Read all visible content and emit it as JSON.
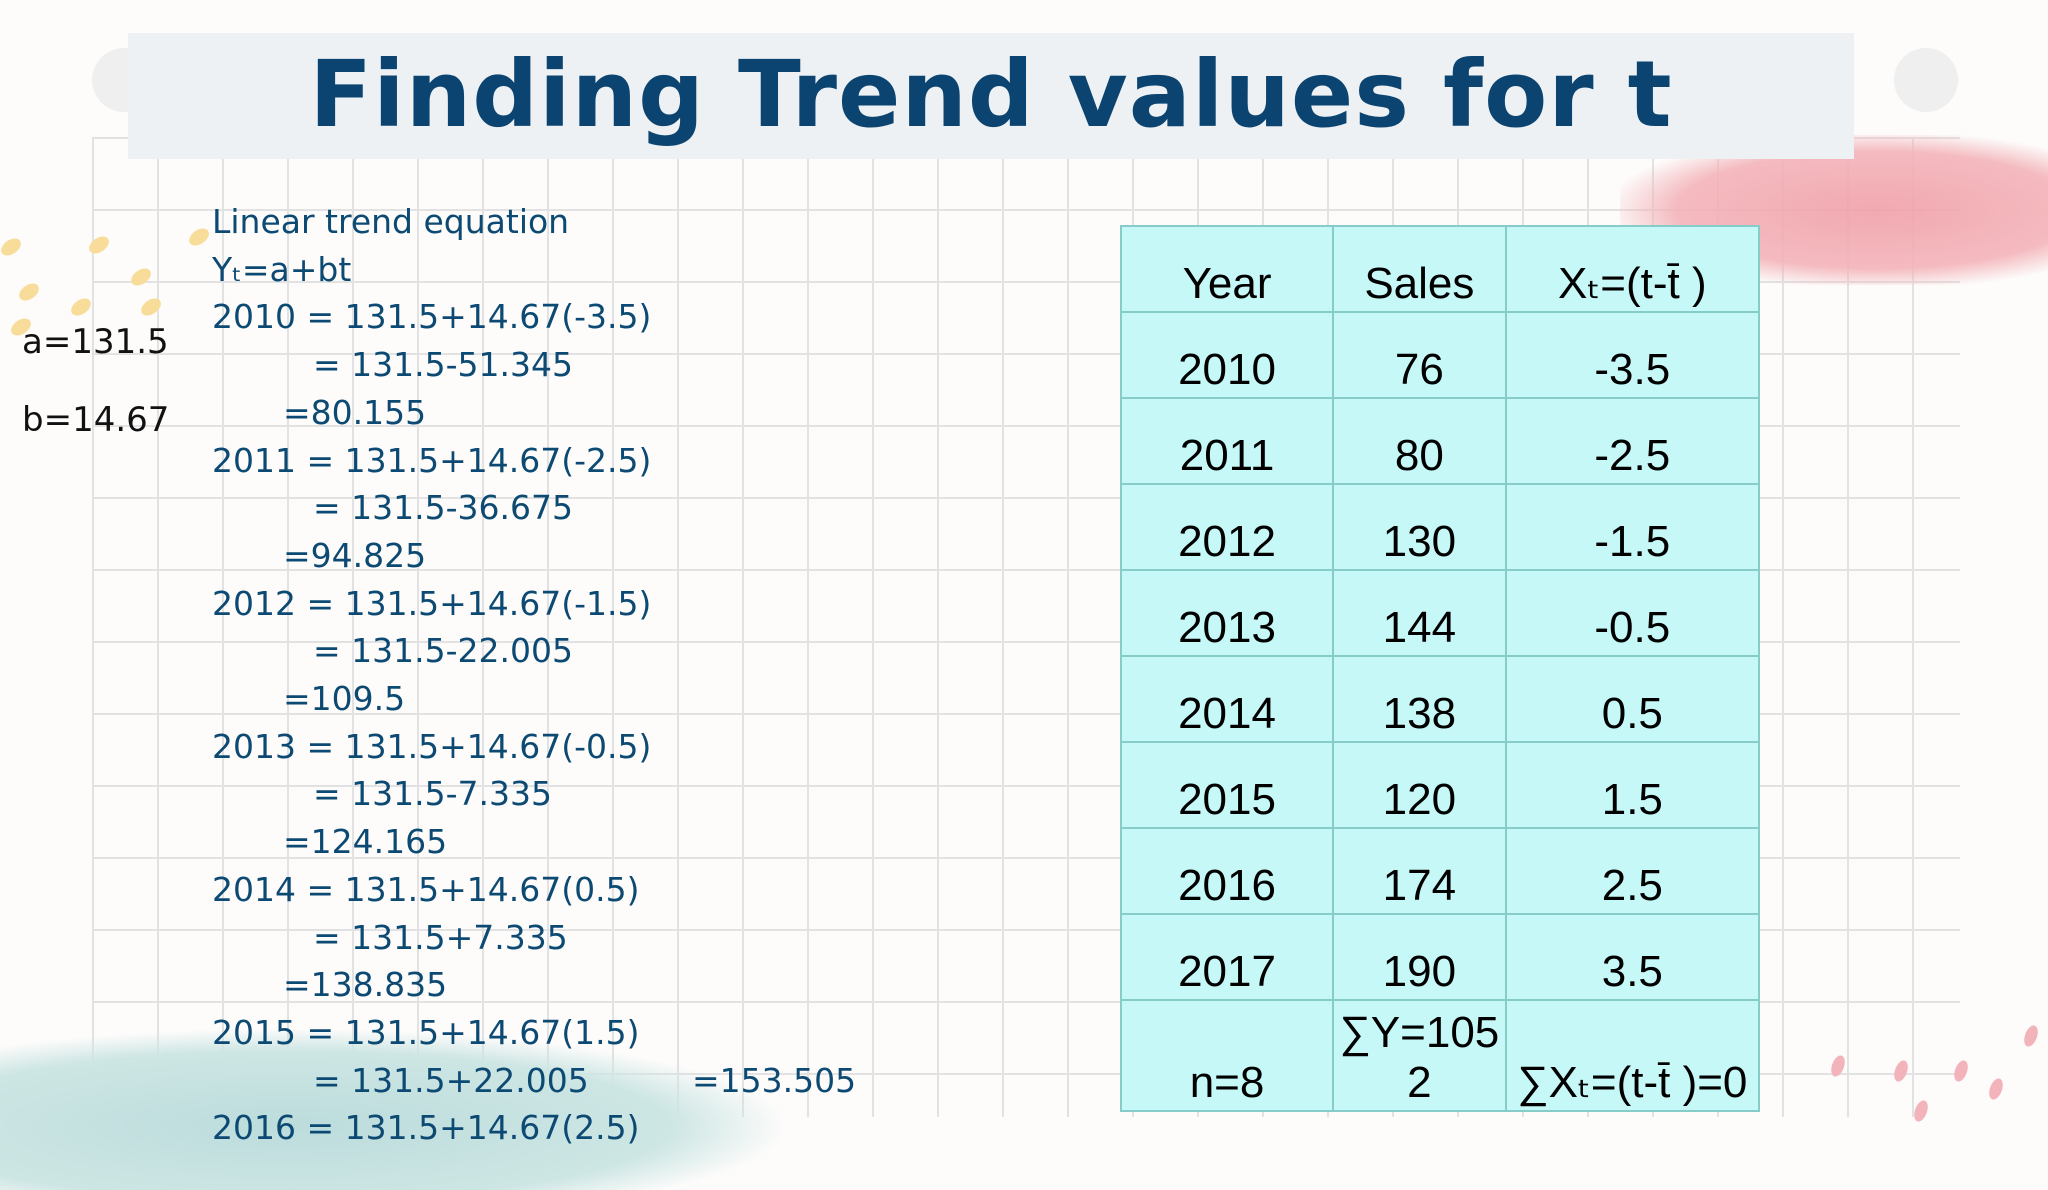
{
  "slide": {
    "title": "Finding Trend values for t",
    "constants": {
      "a": "a=131.5",
      "b": "b=14.67"
    },
    "equations": [
      {
        "text": "Linear trend equation",
        "indent": 0
      },
      {
        "text": "Yₜ=a+bt",
        "indent": 0
      },
      {
        "text": "2010 = 131.5+14.67(-3.5)",
        "indent": 0
      },
      {
        "text": "= 131.5-51.345",
        "indent": 2
      },
      {
        "text": "=80.155",
        "indent": 1
      },
      {
        "text": "2011 = 131.5+14.67(-2.5)",
        "indent": 0
      },
      {
        "text": "= 131.5-36.675",
        "indent": 2
      },
      {
        "text": "=94.825",
        "indent": 1
      },
      {
        "text": "2012 = 131.5+14.67(-1.5)",
        "indent": 0
      },
      {
        "text": "= 131.5-22.005",
        "indent": 2
      },
      {
        "text": "=109.5",
        "indent": 1
      },
      {
        "text": "2013 = 131.5+14.67(-0.5)",
        "indent": 0
      },
      {
        "text": "= 131.5-7.335",
        "indent": 2
      },
      {
        "text": "=124.165",
        "indent": 1
      },
      {
        "text": "2014 = 131.5+14.67(0.5)",
        "indent": 0
      },
      {
        "text": "= 131.5+7.335",
        "indent": 2
      },
      {
        "text": "=138.835",
        "indent": 1
      },
      {
        "text": "2015 = 131.5+14.67(1.5)",
        "indent": 0
      },
      {
        "text": "= 131.5+22.005",
        "indent": 2
      },
      {
        "text": "2016 = 131.5+14.67(2.5)",
        "indent": 0
      }
    ],
    "floating_result": "=153.505",
    "table": {
      "headers": [
        "Year",
        "Sales",
        "Xₜ=(t-t̄ )"
      ],
      "rows": [
        [
          "2010",
          "76",
          "-3.5"
        ],
        [
          "2011",
          "80",
          "-2.5"
        ],
        [
          "2012",
          "130",
          "-1.5"
        ],
        [
          "2013",
          "144",
          "-0.5"
        ],
        [
          "2014",
          "138",
          "0.5"
        ],
        [
          "2015",
          "120",
          "1.5"
        ],
        [
          "2016",
          "174",
          "2.5"
        ],
        [
          "2017",
          "190",
          "3.5"
        ]
      ],
      "footer": [
        "n=8",
        "∑Y=1052",
        "∑Xₜ=(t-t̄ )=0"
      ]
    },
    "colors": {
      "title": "#0b4470",
      "equations": "#0d4a73",
      "table_fill": "#c6f8f8",
      "table_border": "#86ccc8"
    }
  }
}
